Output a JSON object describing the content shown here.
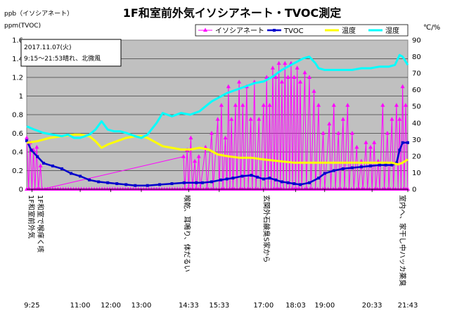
{
  "chart_data": {
    "type": "line",
    "title": "1F和室前外気イソシアネート・TVOC測定",
    "left_unit_lines": [
      "ppb（イソシアネート）",
      "ppm(TVOC)"
    ],
    "right_unit": "℃/%",
    "note_lines": [
      "2017.11.07(火)",
      "9:15～21:53晴れ、北微風"
    ],
    "y_left": {
      "min": 0,
      "max": 1.6,
      "ticks": [
        "0",
        "0.2",
        "0.4",
        "0.6",
        "0.8",
        "1",
        "1.2",
        "1.4",
        "1.6"
      ]
    },
    "y_right": {
      "min": 0,
      "max": 90,
      "ticks": [
        "0",
        "10",
        "20",
        "30",
        "40",
        "50",
        "60",
        "70",
        "80",
        "90"
      ]
    },
    "x": {
      "min": 9.25,
      "max": 21.72
    },
    "x_ticks": [
      {
        "h": 9.42,
        "label": "9:25"
      },
      {
        "h": 11.0,
        "label": "11:00"
      },
      {
        "h": 12.0,
        "label": "12:00"
      },
      {
        "h": 13.0,
        "label": "13:00"
      },
      {
        "h": 14.55,
        "label": "14:33"
      },
      {
        "h": 15.55,
        "label": "15:33"
      },
      {
        "h": 17.0,
        "label": "17:00"
      },
      {
        "h": 18.05,
        "label": "18:03"
      },
      {
        "h": 19.0,
        "label": "19:00"
      },
      {
        "h": 20.55,
        "label": "20:33"
      },
      {
        "h": 21.72,
        "label": "21:43"
      }
    ],
    "annotations": [
      {
        "h": 9.25,
        "text": "1F和室前外気"
      },
      {
        "h": 9.55,
        "text": "1F和室で喉痒く咳"
      },
      {
        "h": 14.35,
        "text": "喉乾、耳鳴り、体だるい"
      },
      {
        "h": 16.95,
        "text": "玄関外石鹸臭S家から"
      },
      {
        "h": 21.4,
        "text": "室内へ、家干し中ハッカ薬臭"
      }
    ],
    "legend_position": "top",
    "grid": true,
    "series": [
      {
        "name": "イソシアネート",
        "axis": "left",
        "color": "#ff00ff",
        "marker": "triangle",
        "baseline": 0,
        "points": [
          [
            9.25,
            0.55
          ],
          [
            9.31,
            0
          ],
          [
            9.36,
            0.5
          ],
          [
            9.42,
            0
          ],
          [
            9.47,
            0.42
          ],
          [
            9.52,
            0
          ],
          [
            9.58,
            0.45
          ],
          [
            9.63,
            0
          ],
          [
            9.7,
            0.25
          ],
          [
            9.75,
            0
          ],
          [
            14.38,
            0.35
          ],
          [
            14.42,
            0
          ],
          [
            14.5,
            0.42
          ],
          [
            14.55,
            0
          ],
          [
            14.62,
            0.55
          ],
          [
            14.67,
            0
          ],
          [
            14.75,
            0.3
          ],
          [
            14.8,
            0
          ],
          [
            14.88,
            0.35
          ],
          [
            14.93,
            0
          ],
          [
            15.1,
            0.45
          ],
          [
            15.15,
            0
          ],
          [
            15.3,
            0.6
          ],
          [
            15.35,
            0
          ],
          [
            15.5,
            0.75
          ],
          [
            15.55,
            0
          ],
          [
            15.62,
            0.9
          ],
          [
            15.67,
            0
          ],
          [
            15.75,
            0.55
          ],
          [
            15.8,
            0
          ],
          [
            15.85,
            1.1
          ],
          [
            15.9,
            0
          ],
          [
            15.95,
            0.75
          ],
          [
            16.0,
            0
          ],
          [
            16.08,
            0.9
          ],
          [
            16.13,
            0
          ],
          [
            16.2,
            1.15
          ],
          [
            16.25,
            0
          ],
          [
            16.32,
            0.9
          ],
          [
            16.37,
            0
          ],
          [
            16.45,
            1.1
          ],
          [
            16.5,
            0
          ],
          [
            16.58,
            0.75
          ],
          [
            16.63,
            0
          ],
          [
            16.7,
            1.15
          ],
          [
            16.75,
            0
          ],
          [
            16.85,
            0.75
          ],
          [
            16.9,
            0
          ],
          [
            17.0,
            0.9
          ],
          [
            17.05,
            0
          ],
          [
            17.1,
            1.2
          ],
          [
            17.15,
            0
          ],
          [
            17.2,
            0.9
          ],
          [
            17.25,
            0
          ],
          [
            17.3,
            1.3
          ],
          [
            17.35,
            0
          ],
          [
            17.4,
            1.2
          ],
          [
            17.45,
            0
          ],
          [
            17.5,
            1.35
          ],
          [
            17.55,
            0
          ],
          [
            17.6,
            1.15
          ],
          [
            17.65,
            0
          ],
          [
            17.7,
            1.35
          ],
          [
            17.75,
            0
          ],
          [
            17.8,
            1.2
          ],
          [
            17.85,
            0
          ],
          [
            17.9,
            1.35
          ],
          [
            17.95,
            0
          ],
          [
            18.0,
            1.2
          ],
          [
            18.05,
            0
          ],
          [
            18.1,
            1.3
          ],
          [
            18.15,
            0
          ],
          [
            18.2,
            1.15
          ],
          [
            18.25,
            0
          ],
          [
            18.35,
            1.25
          ],
          [
            18.4,
            0
          ],
          [
            18.5,
            1.2
          ],
          [
            18.55,
            0
          ],
          [
            18.65,
            1.05
          ],
          [
            18.7,
            0
          ],
          [
            18.8,
            0.9
          ],
          [
            18.85,
            0
          ],
          [
            18.95,
            0.6
          ],
          [
            19.0,
            0
          ],
          [
            19.15,
            0.7
          ],
          [
            19.2,
            0
          ],
          [
            19.3,
            0.9
          ],
          [
            19.35,
            0
          ],
          [
            19.45,
            0.6
          ],
          [
            19.5,
            0
          ],
          [
            19.6,
            0.75
          ],
          [
            19.65,
            0
          ],
          [
            19.75,
            0.9
          ],
          [
            19.8,
            0
          ],
          [
            19.9,
            0.6
          ],
          [
            19.95,
            0
          ],
          [
            20.05,
            0.45
          ],
          [
            20.1,
            0
          ],
          [
            20.2,
            0.3
          ],
          [
            20.25,
            0
          ],
          [
            20.35,
            0.5
          ],
          [
            20.4,
            0
          ],
          [
            20.5,
            0.45
          ],
          [
            20.55,
            0
          ],
          [
            20.62,
            0.5
          ],
          [
            20.67,
            0
          ],
          [
            20.75,
            0.3
          ],
          [
            20.8,
            0
          ],
          [
            20.9,
            0.9
          ],
          [
            20.95,
            0
          ],
          [
            21.05,
            0.6
          ],
          [
            21.1,
            0
          ],
          [
            21.2,
            0.75
          ],
          [
            21.25,
            0
          ],
          [
            21.35,
            0.9
          ],
          [
            21.4,
            0
          ],
          [
            21.45,
            0.75
          ],
          [
            21.5,
            0
          ],
          [
            21.55,
            1.1
          ],
          [
            21.6,
            0
          ],
          [
            21.65,
            0.9
          ],
          [
            21.72,
            0
          ]
        ]
      },
      {
        "name": "TVOC",
        "axis": "left",
        "color": "#0000cc",
        "marker": "square",
        "points": [
          [
            9.25,
            0.52
          ],
          [
            9.4,
            0.42
          ],
          [
            9.6,
            0.35
          ],
          [
            9.8,
            0.28
          ],
          [
            10.1,
            0.25
          ],
          [
            10.4,
            0.22
          ],
          [
            10.7,
            0.17
          ],
          [
            11.0,
            0.14
          ],
          [
            11.3,
            0.1
          ],
          [
            11.6,
            0.08
          ],
          [
            11.9,
            0.07
          ],
          [
            12.2,
            0.06
          ],
          [
            12.5,
            0.05
          ],
          [
            12.8,
            0.04
          ],
          [
            13.2,
            0.04
          ],
          [
            13.6,
            0.05
          ],
          [
            14.0,
            0.06
          ],
          [
            14.4,
            0.07
          ],
          [
            14.8,
            0.07
          ],
          [
            15.0,
            0.07
          ],
          [
            15.3,
            0.08
          ],
          [
            15.6,
            0.1
          ],
          [
            15.8,
            0.11
          ],
          [
            16.0,
            0.12
          ],
          [
            16.3,
            0.14
          ],
          [
            16.6,
            0.15
          ],
          [
            16.8,
            0.13
          ],
          [
            17.0,
            0.11
          ],
          [
            17.2,
            0.12
          ],
          [
            17.4,
            0.1
          ],
          [
            17.6,
            0.08
          ],
          [
            17.8,
            0.07
          ],
          [
            18.0,
            0.06
          ],
          [
            18.2,
            0.05
          ],
          [
            18.5,
            0.07
          ],
          [
            18.8,
            0.12
          ],
          [
            19.0,
            0.17
          ],
          [
            19.3,
            0.2
          ],
          [
            19.6,
            0.22
          ],
          [
            19.9,
            0.23
          ],
          [
            20.2,
            0.24
          ],
          [
            20.5,
            0.25
          ],
          [
            20.8,
            0.26
          ],
          [
            21.0,
            0.26
          ],
          [
            21.2,
            0.26
          ],
          [
            21.35,
            0.28
          ],
          [
            21.45,
            0.42
          ],
          [
            21.55,
            0.5
          ],
          [
            21.72,
            0.5
          ]
        ]
      },
      {
        "name": "温度",
        "axis": "right",
        "color": "#ffff00",
        "marker": "line",
        "points": [
          [
            9.25,
            28
          ],
          [
            9.6,
            29
          ],
          [
            10.0,
            31
          ],
          [
            10.4,
            32
          ],
          [
            10.8,
            33
          ],
          [
            11.0,
            33
          ],
          [
            11.3,
            32
          ],
          [
            11.5,
            29
          ],
          [
            11.7,
            25
          ],
          [
            11.9,
            27
          ],
          [
            12.2,
            29
          ],
          [
            12.5,
            31
          ],
          [
            12.8,
            32
          ],
          [
            13.0,
            32
          ],
          [
            13.2,
            31
          ],
          [
            13.4,
            29
          ],
          [
            13.7,
            26
          ],
          [
            14.0,
            25
          ],
          [
            14.3,
            24
          ],
          [
            14.6,
            24
          ],
          [
            14.9,
            25
          ],
          [
            15.2,
            24
          ],
          [
            15.5,
            21
          ],
          [
            15.8,
            20
          ],
          [
            16.2,
            19
          ],
          [
            16.6,
            19
          ],
          [
            17.0,
            18
          ],
          [
            17.5,
            17
          ],
          [
            18.0,
            16
          ],
          [
            18.5,
            16
          ],
          [
            19.0,
            16
          ],
          [
            19.5,
            16
          ],
          [
            20.0,
            16
          ],
          [
            20.5,
            16
          ],
          [
            20.9,
            16
          ],
          [
            21.2,
            16
          ],
          [
            21.4,
            15
          ],
          [
            21.55,
            16
          ],
          [
            21.72,
            18
          ]
        ]
      },
      {
        "name": "湿度",
        "axis": "right",
        "color": "#00ffff",
        "marker": "line",
        "points": [
          [
            9.25,
            38
          ],
          [
            9.5,
            36
          ],
          [
            9.8,
            34
          ],
          [
            10.1,
            33
          ],
          [
            10.4,
            32
          ],
          [
            10.6,
            33
          ],
          [
            10.8,
            31
          ],
          [
            11.0,
            31
          ],
          [
            11.3,
            33
          ],
          [
            11.5,
            36
          ],
          [
            11.7,
            41
          ],
          [
            11.9,
            36
          ],
          [
            12.1,
            35
          ],
          [
            12.3,
            35
          ],
          [
            12.5,
            34
          ],
          [
            12.8,
            32
          ],
          [
            13.0,
            31
          ],
          [
            13.2,
            33
          ],
          [
            13.5,
            40
          ],
          [
            13.7,
            46
          ],
          [
            14.0,
            44
          ],
          [
            14.3,
            46
          ],
          [
            14.6,
            45
          ],
          [
            14.9,
            47
          ],
          [
            15.1,
            50
          ],
          [
            15.3,
            53
          ],
          [
            15.5,
            55
          ],
          [
            15.8,
            58
          ],
          [
            16.1,
            60
          ],
          [
            16.4,
            62
          ],
          [
            16.7,
            64
          ],
          [
            17.0,
            65
          ],
          [
            17.3,
            68
          ],
          [
            17.6,
            72
          ],
          [
            17.9,
            75
          ],
          [
            18.1,
            77
          ],
          [
            18.3,
            79
          ],
          [
            18.5,
            80
          ],
          [
            18.7,
            76
          ],
          [
            18.8,
            73
          ],
          [
            19.0,
            72
          ],
          [
            19.3,
            72
          ],
          [
            19.6,
            72
          ],
          [
            19.9,
            72
          ],
          [
            20.2,
            73
          ],
          [
            20.5,
            73
          ],
          [
            20.8,
            74
          ],
          [
            21.1,
            74
          ],
          [
            21.3,
            75
          ],
          [
            21.45,
            81
          ],
          [
            21.55,
            80
          ],
          [
            21.72,
            75
          ]
        ]
      }
    ]
  }
}
